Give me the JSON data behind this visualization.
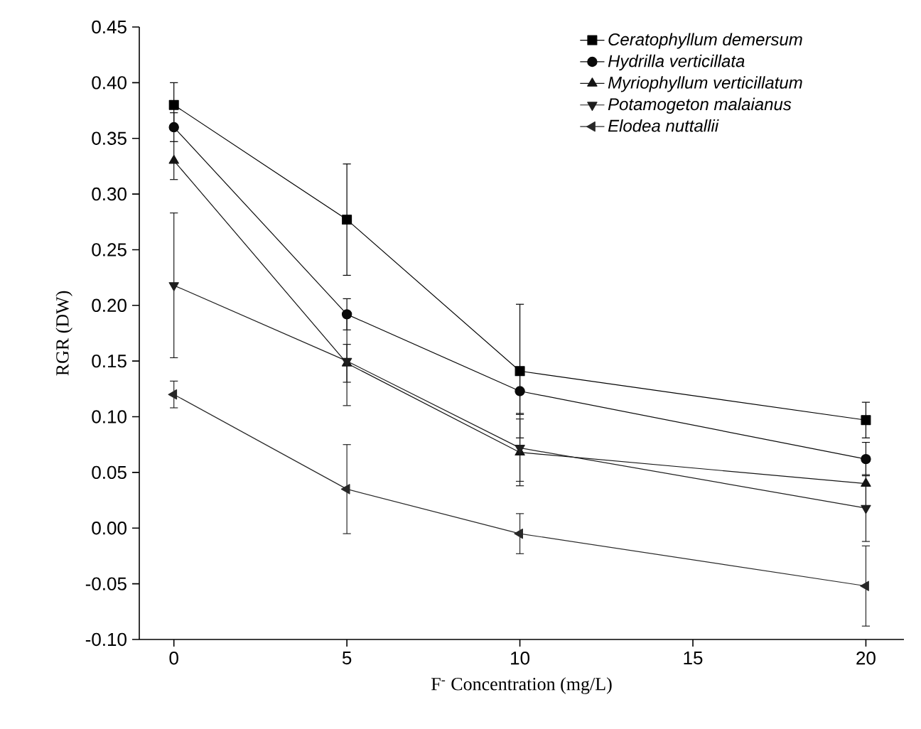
{
  "chart_data": {
    "type": "line",
    "xlabel": "F$^{-}$ Concentration (mg/L)",
    "ylabel": "RGR (DW)",
    "x": [
      0,
      5,
      10,
      20
    ],
    "xlim": [
      -1,
      21.1
    ],
    "xticks": [
      0,
      5,
      10,
      15,
      20
    ],
    "ylim": [
      -0.1,
      0.45
    ],
    "yticks": [
      {
        "value": -0.1,
        "label": "-0.10"
      },
      {
        "value": -0.05,
        "label": "-0.05"
      },
      {
        "value": 0,
        "label": "0.00"
      },
      {
        "value": 0.05,
        "label": "0.05"
      },
      {
        "value": 0.1,
        "label": "0.10"
      },
      {
        "value": 0.15,
        "label": "0.15"
      },
      {
        "value": 0.2,
        "label": "0.20"
      },
      {
        "value": 0.25,
        "label": "0.25"
      },
      {
        "value": 0.3,
        "label": "0.30"
      },
      {
        "value": 0.35,
        "label": "0.35"
      },
      {
        "value": 0.4,
        "label": "0.40"
      },
      {
        "value": 0.45,
        "label": "0.45"
      }
    ],
    "grid": false,
    "legend": "top right",
    "line_style": "solid",
    "series": [
      {
        "name": "Ceratophyllum demersum",
        "color": "#000000",
        "marker": "square",
        "values": [
          0.38,
          0.277,
          0.141,
          0.097
        ],
        "errors": [
          0.02,
          0.05,
          0.06,
          0.016
        ]
      },
      {
        "name": "Hydrilla verticillata",
        "color": "#0a0a0a",
        "marker": "circle",
        "values": [
          0.36,
          0.192,
          0.123,
          0.062
        ],
        "errors": [
          0.013,
          0.014,
          0.02,
          0.015
        ]
      },
      {
        "name": "Myriophyllum verticillatum",
        "color": "#141414",
        "marker": "triangle",
        "values": [
          0.33,
          0.148,
          0.068,
          0.04
        ],
        "errors": [
          0.017,
          0.017,
          0.03,
          0.02
        ]
      },
      {
        "name": "Potamogeton malaianus",
        "color": "#1e1e1e",
        "marker": "triangle-down",
        "values": [
          0.218,
          0.15,
          0.072,
          0.018
        ],
        "errors": [
          0.065,
          0.04,
          0.03,
          0.03
        ]
      },
      {
        "name": "Elodea nuttallii",
        "color": "#282828",
        "marker": "triangle-left",
        "values": [
          0.12,
          0.035,
          -0.005,
          -0.052
        ],
        "errors": [
          0.012,
          0.04,
          0.018,
          0.036
        ]
      }
    ]
  }
}
